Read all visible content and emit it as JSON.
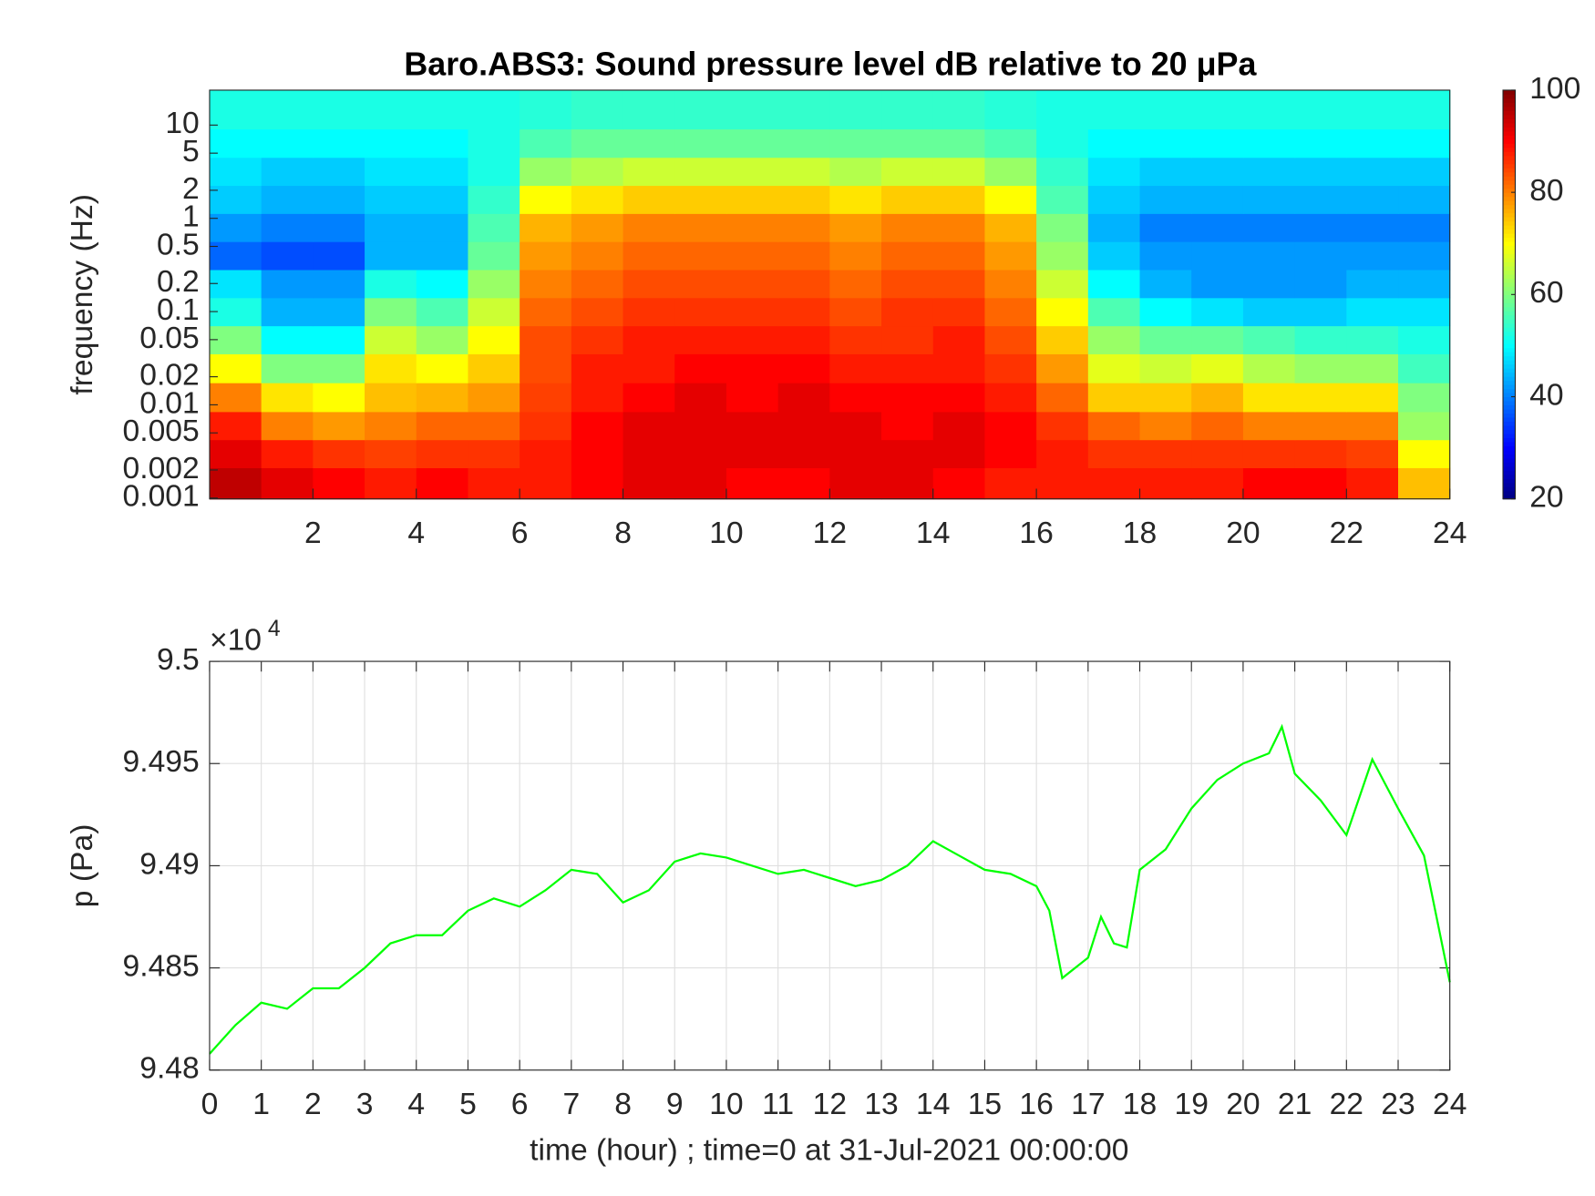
{
  "chart_data": [
    {
      "type": "heatmap",
      "title": "Baro.ABS3: Sound pressure level dB relative to 20 μPa",
      "ylabel": "frequency (Hz)",
      "x": [
        0.5,
        1.5,
        2.5,
        3.5,
        4.5,
        5.5,
        6.5,
        7.5,
        8.5,
        9.5,
        10.5,
        11.5,
        12.5,
        13.5,
        14.5,
        15.5,
        16.5,
        17.5,
        18.5,
        19.5,
        20.5,
        21.5,
        22.5,
        23.5
      ],
      "y": [
        0.0015,
        0.003,
        0.006,
        0.012,
        0.025,
        0.05,
        0.1,
        0.2,
        0.4,
        0.8,
        1.6,
        3.2,
        6.4,
        13
      ],
      "z": [
        [
          95,
          92,
          90,
          88,
          90,
          88,
          88,
          90,
          92,
          92,
          90,
          90,
          92,
          92,
          90,
          88,
          88,
          88,
          88,
          88,
          90,
          90,
          88,
          75
        ],
        [
          92,
          88,
          86,
          85,
          86,
          86,
          88,
          90,
          92,
          92,
          92,
          92,
          92,
          92,
          92,
          90,
          88,
          86,
          86,
          86,
          86,
          86,
          85,
          70
        ],
        [
          88,
          80,
          78,
          80,
          82,
          82,
          86,
          90,
          92,
          92,
          92,
          92,
          92,
          90,
          92,
          90,
          86,
          82,
          80,
          82,
          80,
          80,
          80,
          62
        ],
        [
          80,
          72,
          70,
          75,
          76,
          78,
          85,
          88,
          90,
          92,
          90,
          92,
          90,
          90,
          90,
          88,
          82,
          74,
          74,
          76,
          72,
          72,
          72,
          60
        ],
        [
          70,
          60,
          60,
          72,
          70,
          74,
          84,
          88,
          88,
          90,
          90,
          90,
          88,
          88,
          88,
          86,
          78,
          68,
          66,
          68,
          64,
          62,
          62,
          55
        ],
        [
          60,
          50,
          50,
          66,
          62,
          70,
          84,
          86,
          88,
          88,
          88,
          88,
          86,
          86,
          88,
          84,
          74,
          62,
          58,
          58,
          56,
          54,
          54,
          52
        ],
        [
          52,
          44,
          44,
          60,
          56,
          66,
          82,
          84,
          86,
          86,
          86,
          86,
          84,
          86,
          86,
          82,
          70,
          56,
          50,
          48,
          46,
          46,
          48,
          48
        ],
        [
          48,
          42,
          42,
          52,
          50,
          62,
          80,
          82,
          84,
          84,
          84,
          84,
          82,
          84,
          84,
          80,
          66,
          50,
          44,
          42,
          42,
          42,
          44,
          44
        ],
        [
          38,
          36,
          36,
          44,
          44,
          58,
          78,
          80,
          82,
          82,
          82,
          82,
          80,
          82,
          82,
          78,
          62,
          46,
          42,
          42,
          42,
          42,
          42,
          42
        ],
        [
          42,
          40,
          40,
          44,
          44,
          56,
          76,
          78,
          80,
          80,
          80,
          80,
          78,
          80,
          80,
          76,
          60,
          44,
          40,
          40,
          40,
          40,
          40,
          40
        ],
        [
          46,
          44,
          44,
          46,
          46,
          54,
          70,
          72,
          74,
          74,
          74,
          74,
          72,
          74,
          74,
          70,
          56,
          46,
          44,
          44,
          44,
          44,
          44,
          44
        ],
        [
          48,
          46,
          46,
          48,
          48,
          52,
          62,
          64,
          66,
          66,
          66,
          66,
          64,
          66,
          66,
          62,
          54,
          48,
          46,
          46,
          46,
          46,
          46,
          46
        ],
        [
          50,
          50,
          50,
          50,
          50,
          52,
          56,
          58,
          58,
          58,
          58,
          58,
          58,
          58,
          58,
          56,
          52,
          50,
          50,
          50,
          50,
          50,
          50,
          50
        ],
        [
          52,
          52,
          52,
          52,
          52,
          52,
          53,
          54,
          54,
          54,
          54,
          54,
          54,
          54,
          54,
          53,
          52,
          52,
          52,
          52,
          52,
          52,
          52,
          52
        ]
      ],
      "xlim": [
        0,
        24
      ],
      "xticks": [
        2,
        4,
        6,
        8,
        10,
        12,
        14,
        16,
        18,
        20,
        22,
        24
      ],
      "ylim": [
        0.00098,
        23.7
      ],
      "ylog": true,
      "yticks": [
        0.001,
        0.002,
        0.005,
        0.01,
        0.02,
        0.05,
        0.1,
        0.2,
        0.5,
        1,
        2,
        5,
        10
      ],
      "colormap": "jet",
      "clim": [
        20,
        100
      ],
      "cticks": [
        20,
        40,
        60,
        80,
        100
      ]
    },
    {
      "type": "line",
      "ylabel": "p (Pa)",
      "xlabel": "time (hour) ; time=0 at 31-Jul-2021 00:00:00",
      "y_exponent": "×10",
      "y_exponent_power": "4",
      "x": [
        0,
        0.5,
        1,
        1.5,
        2,
        2.5,
        3,
        3.5,
        4,
        4.5,
        5,
        5.5,
        6,
        6.5,
        7,
        7.5,
        8,
        8.5,
        9,
        9.5,
        10,
        10.5,
        11,
        11.5,
        12,
        12.5,
        13,
        13.5,
        14,
        14.5,
        15,
        15.5,
        16,
        16.25,
        16.5,
        17,
        17.25,
        17.5,
        17.75,
        18,
        18.5,
        19,
        19.5,
        20,
        20.5,
        20.75,
        21,
        21.5,
        22,
        22.5,
        23,
        23.5,
        24
      ],
      "series": [
        {
          "color": "#00ff00",
          "values": [
            94808,
            94822,
            94833,
            94830,
            94840,
            94840,
            94850,
            94862,
            94866,
            94866,
            94878,
            94884,
            94880,
            94888,
            94898,
            94896,
            94882,
            94888,
            94902,
            94906,
            94904,
            94900,
            94896,
            94898,
            94894,
            94890,
            94893,
            94900,
            94912,
            94905,
            94898,
            94896,
            94890,
            94878,
            94845,
            94855,
            94875,
            94862,
            94860,
            94898,
            94908,
            94928,
            94942,
            94950,
            94955,
            94968,
            94945,
            94932,
            94915,
            94952,
            94928,
            94905,
            94843
          ]
        }
      ],
      "xlim": [
        0,
        24
      ],
      "xticks": [
        0,
        1,
        2,
        3,
        4,
        5,
        6,
        7,
        8,
        9,
        10,
        11,
        12,
        13,
        14,
        15,
        16,
        17,
        18,
        19,
        20,
        21,
        22,
        23,
        24
      ],
      "ylim": [
        94800,
        95000
      ],
      "yticks": [
        {
          "value": 94800,
          "label": "9.48"
        },
        {
          "value": 94850,
          "label": "9.485"
        },
        {
          "value": 94900,
          "label": "9.49"
        },
        {
          "value": 94950,
          "label": "9.495"
        },
        {
          "value": 95000,
          "label": "9.5"
        }
      ],
      "grid": true
    }
  ]
}
